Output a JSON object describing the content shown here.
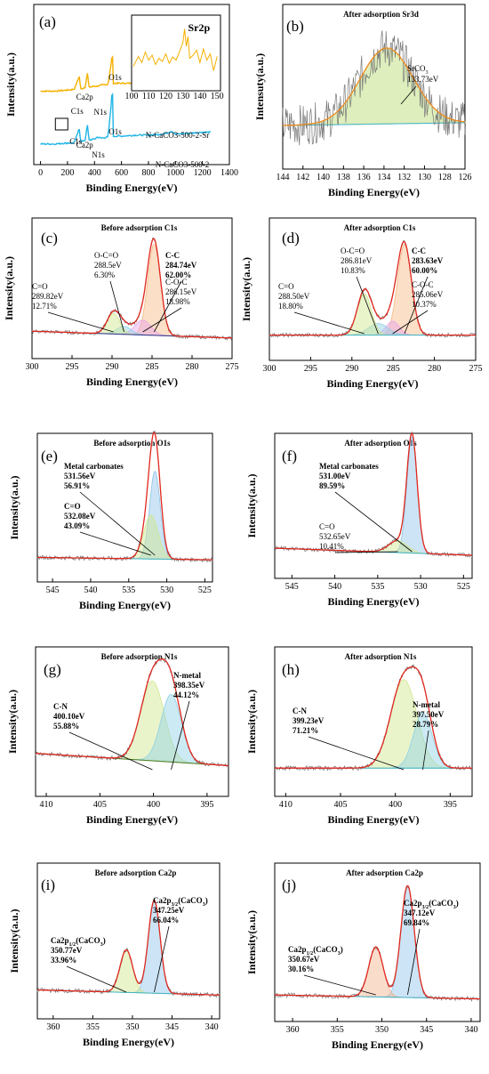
{
  "chart_data": [
    {
      "type": "line",
      "label": "(a)",
      "xlabel": "Binding Energy(eV)",
      "ylabel": "Intensity(a.u.)",
      "xlim": [
        -50,
        1400
      ],
      "xreversed": false,
      "xticks": [
        0,
        200,
        400,
        600,
        800,
        1000,
        1200,
        1400
      ],
      "series": [
        {
          "name": "N-CaCO3-500-2-Sr",
          "color": "#f5b000",
          "x": [
            0,
            100,
            200,
            250,
            285,
            300,
            330,
            347,
            360,
            400,
            420,
            450,
            500,
            531,
            540,
            600,
            700,
            800,
            900,
            975,
            1000,
            1100,
            1200,
            1260
          ],
          "y": [
            0.66,
            0.66,
            0.67,
            0.68,
            0.8,
            0.68,
            0.7,
            0.84,
            0.7,
            0.71,
            0.71,
            0.72,
            0.73,
            1.0,
            0.74,
            0.74,
            0.74,
            0.75,
            0.75,
            0.78,
            0.75,
            0.75,
            0.77,
            0.76
          ]
        },
        {
          "name": "N-CaCO3-500-2",
          "color": "#1fb5e5",
          "x": [
            0,
            100,
            200,
            250,
            285,
            300,
            330,
            347,
            360,
            400,
            420,
            450,
            500,
            531,
            540,
            600,
            700,
            800,
            900,
            975,
            1000,
            1100,
            1200,
            1260
          ],
          "y": [
            0.12,
            0.12,
            0.13,
            0.13,
            0.27,
            0.14,
            0.16,
            0.31,
            0.16,
            0.17,
            0.19,
            0.18,
            0.19,
            0.62,
            0.2,
            0.2,
            0.21,
            0.21,
            0.22,
            0.25,
            0.22,
            0.23,
            0.24,
            0.24
          ]
        }
      ],
      "peak_labels": [
        "O1s",
        "Ca2p",
        "C1s",
        "N1s",
        "O1s",
        "Ca2p",
        "C1s",
        "N1s"
      ],
      "legend_labels": [
        "N-CaCO3-500-2-Sr",
        "N-CaCO3-500-2"
      ],
      "inset": {
        "title": "Sr2p",
        "xlim": [
          100,
          152
        ],
        "xticks": [
          100,
          110,
          120,
          130,
          140,
          150
        ],
        "x": [
          101,
          104,
          106,
          108,
          110,
          112,
          114,
          116,
          118,
          120,
          122,
          124,
          126,
          128,
          130,
          131,
          132,
          133,
          134,
          136,
          138,
          140,
          142,
          144,
          146,
          148,
          150
        ],
        "y": [
          0.32,
          0.48,
          0.38,
          0.55,
          0.42,
          0.5,
          0.35,
          0.45,
          0.4,
          0.52,
          0.37,
          0.47,
          0.42,
          0.55,
          0.7,
          0.92,
          0.64,
          0.8,
          0.45,
          0.5,
          0.58,
          0.38,
          0.6,
          0.42,
          0.52,
          0.25,
          0.48
        ]
      }
    },
    {
      "type": "line",
      "label": "(b)",
      "title": "After adsorption  Sr3d",
      "xlabel": "Binding Energy(eV)",
      "ylabel": "Intensuty(a.u.)",
      "xlim": [
        144,
        126
      ],
      "xreversed": true,
      "xticks": [
        144,
        142,
        140,
        138,
        136,
        134,
        132,
        130,
        128,
        126
      ],
      "peaks": [
        {
          "name": "SrCO3",
          "center": 133.73,
          "label": "133.73eV",
          "color": "#b5d96a",
          "height": 0.55,
          "width": 2.6
        }
      ],
      "background": [
        0.2,
        0.22
      ],
      "annotations": [
        {
          "line1": "SrCO",
          "sub": "3",
          "line2": "133.73eV"
        }
      ]
    },
    {
      "type": "line",
      "label": "(c)",
      "title": "Before adsorption        C1s",
      "xlabel": "Binding Energy(eV)",
      "ylabel": "Intensity(a.u.)",
      "xlim": [
        300,
        275
      ],
      "xreversed": true,
      "xticks": [
        300,
        295,
        290,
        285,
        280,
        275
      ],
      "peaks": [
        {
          "name": "C-C",
          "center": 284.74,
          "percent": "62.00%",
          "color": "#f7b983",
          "height": 0.8,
          "width": 0.8
        },
        {
          "name": "C-O-C",
          "center": 286.15,
          "percent": "18.98%",
          "color": "#e7a2e8",
          "height": 0.13,
          "width": 1.0
        },
        {
          "name": "O-C=O",
          "center": 288.5,
          "percent": "6.30%",
          "color": "#8fd0e6",
          "height": 0.07,
          "width": 0.9
        },
        {
          "name": "C=O",
          "center": 289.82,
          "percent": "12.71%",
          "color": "#cfe78c",
          "height": 0.18,
          "width": 0.8
        }
      ],
      "background": [
        0.1,
        0.04
      ],
      "annotations": [
        {
          "line1": "C-C",
          "line2": "284.74eV",
          "line3": "62.00%"
        },
        {
          "line1": "C-O-C",
          "line2": "286.15eV",
          "line3": "18.98%"
        },
        {
          "line1": "O-C=O",
          "line2": "288.5eV",
          "line3": "6.30%"
        },
        {
          "line1": "C=O",
          "line2": "289.82eV",
          "line3": "12.71%"
        }
      ]
    },
    {
      "type": "line",
      "label": "(d)",
      "title": "After adsorption      C1s",
      "xlabel": "Binding Energy(eV)",
      "ylabel": "Intensity(a.u.)",
      "xlim": [
        300,
        275
      ],
      "xreversed": true,
      "xticks": [
        300,
        295,
        290,
        285,
        280,
        275
      ],
      "peaks": [
        {
          "name": "C-C",
          "center": 283.63,
          "percent": "60.00%",
          "color": "#f7b983",
          "height": 0.78,
          "width": 0.85
        },
        {
          "name": "C-O-C",
          "center": 285.06,
          "percent": "10.37%",
          "color": "#e7a2e8",
          "height": 0.12,
          "width": 0.8
        },
        {
          "name": "O-C=O",
          "center": 286.81,
          "percent": "10.83%",
          "color": "#8fd0e6",
          "height": 0.1,
          "width": 1.2
        },
        {
          "name": "C=O",
          "center": 288.5,
          "percent": "18.80%",
          "color": "#cfe78c",
          "height": 0.36,
          "width": 0.85
        }
      ],
      "background": [
        0.08,
        0.08
      ],
      "annotations": [
        {
          "line1": "C-C",
          "line2": "283.63eV",
          "line3": "60.00%"
        },
        {
          "line1": "C-O-C",
          "line2": "285.06eV",
          "line3": "10.37%"
        },
        {
          "line1": "O-C=O",
          "line2": "286.81eV",
          "line3": "10.83%"
        },
        {
          "line1": "C=O",
          "line2": "288.50eV",
          "line3": "18.80%"
        }
      ]
    },
    {
      "type": "line",
      "label": "(e)",
      "title": "Before adsorption  O1s",
      "xlabel": "Binding Energy(eV)",
      "ylabel": "Intensity(a.u.)",
      "xlim": [
        547,
        524
      ],
      "xreversed": true,
      "xticks": [
        545,
        540,
        535,
        530,
        525
      ],
      "peaks": [
        {
          "name": "Metal carbonates",
          "center": 531.56,
          "percent": "56.91%",
          "color": "#8fc3e8",
          "height": 0.72,
          "width": 0.7
        },
        {
          "name": "C=O",
          "center": 532.08,
          "percent": "43.09%",
          "color": "#cfe78c",
          "height": 0.36,
          "width": 0.95
        }
      ],
      "background": [
        0.07,
        0.05
      ],
      "annotations": [
        {
          "line1": "Metal carbonates",
          "line2": "531.56eV",
          "line3": "56.91%"
        },
        {
          "line1": "C=O",
          "line2": "532.08eV",
          "line3": "43.09%"
        }
      ]
    },
    {
      "type": "line",
      "label": "(f)",
      "title": "After adsorption  O1s",
      "xlabel": "Binding Energy(eV)",
      "ylabel": "Intensity(a.u.)",
      "xlim": [
        547,
        524
      ],
      "xreversed": true,
      "xticks": [
        545,
        540,
        535,
        530,
        525
      ],
      "peaks": [
        {
          "name": "Metal carbonates",
          "center": 531.0,
          "percent": "89.59%",
          "color": "#8fc3e8",
          "height": 0.98,
          "width": 0.6
        },
        {
          "name": "C=O",
          "center": 532.65,
          "percent": "10.41%",
          "color": "#cfe78c",
          "height": 0.1,
          "width": 1.1
        }
      ],
      "background": [
        0.12,
        0.06
      ],
      "annotations": [
        {
          "line1": "Metal carbonates",
          "line2": "531.00eV",
          "line3": "89.59%"
        },
        {
          "line1": "C=O",
          "line2": "532.65eV",
          "line3": "10.41%"
        }
      ]
    },
    {
      "type": "line",
      "label": "(g)",
      "title": "Before adsorption  N1s",
      "xlabel": "Binding Energy(eV)",
      "ylabel": "Intensity(a.u.)",
      "xlim": [
        411,
        393
      ],
      "xreversed": true,
      "xticks": [
        410,
        405,
        400,
        395,
        390
      ],
      "peaks": [
        {
          "name": "C-N",
          "center": 400.1,
          "percent": "55.88%",
          "color": "#cfe78c",
          "height": 0.65,
          "width": 1.1
        },
        {
          "name": "N-metal",
          "center": 398.35,
          "percent": "44.12%",
          "color": "#8fd0e6",
          "height": 0.55,
          "width": 0.95
        }
      ],
      "background": [
        0.22,
        0.12
      ],
      "annotations": [
        {
          "line1": "C-N",
          "line2": "400.10eV",
          "line3": "55.88%"
        },
        {
          "line1": "N-metal",
          "line2": "398.35eV",
          "line3": "44.12%"
        }
      ]
    },
    {
      "type": "line",
      "label": "(h)",
      "title": "After adsorption           N1s",
      "xlabel": "Binding Energy(eV)",
      "ylabel": "Intensity(a.u.)",
      "xlim": [
        411,
        393
      ],
      "xreversed": true,
      "xticks": [
        410,
        405,
        400,
        395,
        390
      ],
      "peaks": [
        {
          "name": "C-N",
          "center": 399.23,
          "percent": "71.21%",
          "color": "#cfe78c",
          "height": 0.72,
          "width": 1.2
        },
        {
          "name": "N-metal",
          "center": 397.5,
          "percent": "28.79%",
          "color": "#8fd0e6",
          "height": 0.45,
          "width": 0.85
        }
      ],
      "background": [
        0.1,
        0.1
      ],
      "annotations": [
        {
          "line1": "C-N",
          "line2": "399.23eV",
          "line3": "71.21%"
        },
        {
          "line1": "N-metal",
          "line2": "397.50eV",
          "line3": "28.79%"
        }
      ]
    },
    {
      "type": "line",
      "label": "(i)",
      "title": "Before adsorption   Ca2p",
      "xlabel": "Binding Energy(eV)",
      "ylabel": "Intensity(a.u.)",
      "xlim": [
        362,
        339
      ],
      "xreversed": true,
      "xticks": [
        360,
        355,
        350,
        345,
        340
      ],
      "peaks": [
        {
          "name": "Ca2p3/2(CaCO3)",
          "center": 347.25,
          "percent": "66.04%",
          "color": "#8fc3e8",
          "height": 0.72,
          "width": 0.75
        },
        {
          "name": "Ca2p1/2(CaCO3)",
          "center": 350.77,
          "percent": "33.96%",
          "color": "#cfe78c",
          "height": 0.33,
          "width": 0.8
        }
      ],
      "background": [
        0.1,
        0.06
      ],
      "annotations": [
        {
          "line1": "Ca2p",
          "sub": "3/2",
          "tail": "(CaCO",
          "sub2": "3",
          "end": ")",
          "line2": "347.25eV",
          "line3": "66.04%"
        },
        {
          "line1": "Ca2p",
          "sub": "1/2",
          "tail": "(CaCO",
          "sub2": "3",
          "end": ")",
          "line2": "350.77eV",
          "line3": "33.96%"
        }
      ]
    },
    {
      "type": "line",
      "label": "(j)",
      "title": "After adsorption  Ca2p",
      "xlabel": "Binding Energy(eV)",
      "ylabel": "Intensity(a.u.)",
      "xlim": [
        362,
        339
      ],
      "xreversed": true,
      "xticks": [
        360,
        355,
        350,
        345,
        340
      ],
      "peaks": [
        {
          "name": "Ca2p3/2(CaCO3)",
          "center": 347.12,
          "percent": "69.84%",
          "color": "#8fc3e8",
          "height": 0.85,
          "width": 0.75
        },
        {
          "name": "Ca2p1/2(CaCO3)",
          "center": 350.67,
          "percent": "30.16%",
          "color": "#f3b18c",
          "height": 0.38,
          "width": 0.8
        }
      ],
      "background": [
        0.08,
        0.05
      ],
      "annotations": [
        {
          "line1": "Ca2p",
          "sub": "3/2",
          "tail": "(CaCO",
          "sub2": "3",
          "end": ")",
          "line2": "347.12eV",
          "line3": "69.84%"
        },
        {
          "line1": "Ca2p",
          "sub": "1/2",
          "tail": "(CaCO",
          "sub2": "3",
          "end": ")",
          "line2": "350.67eV",
          "line3": "30.16%"
        }
      ]
    }
  ]
}
